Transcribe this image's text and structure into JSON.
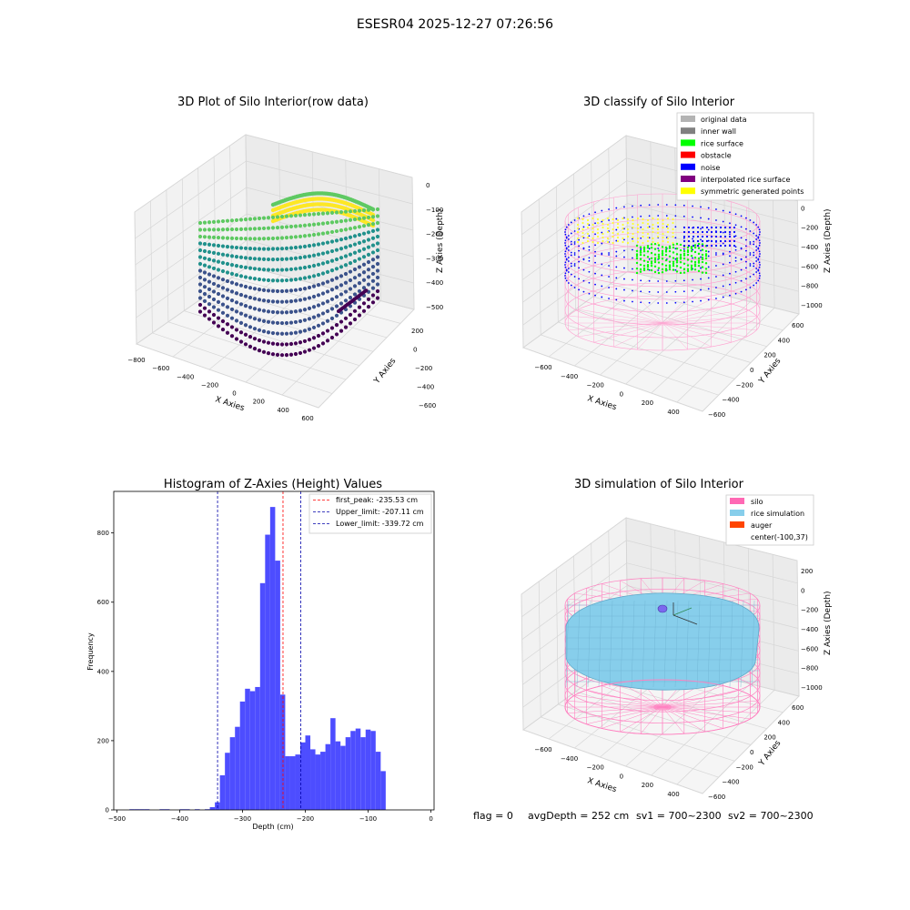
{
  "figure": {
    "suptitle": "ESESR04 2025-12-27 07:26:56",
    "footer": {
      "flag": "flag = 0",
      "avg": "avgDepth = 252 cm",
      "sv1": "sv1 = 700~2300",
      "sv2": "sv2 = 700~2300"
    }
  },
  "chart_data": [
    {
      "type": "scatter",
      "projection": "3d",
      "title": "3D Plot of Silo Interior(row data)",
      "xlabel": "X Axies",
      "ylabel": "Y Axies",
      "zlabel": "Z Axies (Depth)",
      "x_ticks": [
        "−800",
        "−600",
        "−400",
        "−200",
        "0",
        "200",
        "400",
        "600"
      ],
      "y_ticks": [
        "−600",
        "−400",
        "−200",
        "0",
        "200"
      ],
      "z_ticks": [
        "0",
        "−100",
        "−200",
        "−300",
        "−400",
        "−500"
      ],
      "colormap": "viridis",
      "colormap_colors": [
        "#440154",
        "#3b528b",
        "#21918c",
        "#5ec962",
        "#fde725"
      ]
    },
    {
      "type": "scatter",
      "projection": "3d",
      "title": "3D classify of Silo Interior",
      "xlabel": "X Axies",
      "ylabel": "Y Axies",
      "zlabel": "Z Axies (Depth)",
      "x_ticks": [
        "−600",
        "−400",
        "−200",
        "0",
        "200",
        "400"
      ],
      "y_ticks": [
        "−600",
        "−400",
        "−200",
        "0",
        "200",
        "400",
        "600"
      ],
      "z_ticks": [
        "200",
        "0",
        "−200",
        "−400",
        "−600",
        "−800",
        "−1000"
      ],
      "legend_position": "top-right",
      "legend": [
        {
          "label": "original data",
          "color": "#b3b3b3"
        },
        {
          "label": "inner wall",
          "color": "#808080"
        },
        {
          "label": "rice surface",
          "color": "#00ff00"
        },
        {
          "label": "obstacle",
          "color": "#ff0000"
        },
        {
          "label": "noise",
          "color": "#0000ff"
        },
        {
          "label": "interpolated rice surface",
          "color": "#800080"
        },
        {
          "label": "symmetric generated points",
          "color": "#ffff00"
        }
      ]
    },
    {
      "type": "bar",
      "title": "Histogram of Z-Axies (Height) Values",
      "xlabel": "Depth (cm)",
      "ylabel": "Frequency",
      "xlim": [
        -505,
        5
      ],
      "ylim": [
        0,
        920
      ],
      "x_ticks": [
        -500,
        -400,
        -300,
        -200,
        -100,
        0
      ],
      "y_ticks": [
        0,
        200,
        400,
        600,
        800
      ],
      "bar_color": "#4d4dff",
      "bin_width": 8,
      "bins": [
        {
          "x": -480,
          "v": 2
        },
        {
          "x": -472,
          "v": 2
        },
        {
          "x": -464,
          "v": 2
        },
        {
          "x": -456,
          "v": 2
        },
        {
          "x": -432,
          "v": 2
        },
        {
          "x": -424,
          "v": 2
        },
        {
          "x": -400,
          "v": 2
        },
        {
          "x": -392,
          "v": 2
        },
        {
          "x": -376,
          "v": 2
        },
        {
          "x": -360,
          "v": 2
        },
        {
          "x": -352,
          "v": 8
        },
        {
          "x": -344,
          "v": 22
        },
        {
          "x": -336,
          "v": 100
        },
        {
          "x": -328,
          "v": 165
        },
        {
          "x": -320,
          "v": 210
        },
        {
          "x": -312,
          "v": 240
        },
        {
          "x": -304,
          "v": 313
        },
        {
          "x": -296,
          "v": 350
        },
        {
          "x": -288,
          "v": 343
        },
        {
          "x": -280,
          "v": 355
        },
        {
          "x": -272,
          "v": 655
        },
        {
          "x": -264,
          "v": 795
        },
        {
          "x": -256,
          "v": 875
        },
        {
          "x": -248,
          "v": 720
        },
        {
          "x": -240,
          "v": 333
        },
        {
          "x": -232,
          "v": 155
        },
        {
          "x": -224,
          "v": 155
        },
        {
          "x": -216,
          "v": 160
        },
        {
          "x": -208,
          "v": 195
        },
        {
          "x": -200,
          "v": 215
        },
        {
          "x": -192,
          "v": 175
        },
        {
          "x": -184,
          "v": 160
        },
        {
          "x": -176,
          "v": 168
        },
        {
          "x": -168,
          "v": 190
        },
        {
          "x": -160,
          "v": 265
        },
        {
          "x": -152,
          "v": 198
        },
        {
          "x": -144,
          "v": 185
        },
        {
          "x": -136,
          "v": 210
        },
        {
          "x": -128,
          "v": 228
        },
        {
          "x": -120,
          "v": 235
        },
        {
          "x": -112,
          "v": 210
        },
        {
          "x": -104,
          "v": 232
        },
        {
          "x": -96,
          "v": 228
        },
        {
          "x": -88,
          "v": 168
        },
        {
          "x": -80,
          "v": 112
        }
      ],
      "lines": [
        {
          "label": "first_peak: -235.53 cm",
          "x": -235.53,
          "color": "#ff0000"
        },
        {
          "label": "Upper_limit: -207.11 cm",
          "x": -207.11,
          "color": "#0000aa"
        },
        {
          "label": "Lower_limit: -339.72 cm",
          "x": -339.72,
          "color": "#0000aa"
        }
      ],
      "legend_position": "top-right"
    },
    {
      "type": "surface",
      "projection": "3d",
      "title": "3D simulation of Silo Interior",
      "xlabel": "X Axies",
      "ylabel": "Y Axies",
      "zlabel": "Z Axies (Depth)",
      "x_ticks": [
        "−600",
        "−400",
        "−200",
        "0",
        "200",
        "400"
      ],
      "y_ticks": [
        "−600",
        "−400",
        "−200",
        "0",
        "200",
        "400",
        "600"
      ],
      "z_ticks": [
        "200",
        "0",
        "−200",
        "−400",
        "−600",
        "−800",
        "−1000"
      ],
      "legend_position": "top-right",
      "legend": [
        {
          "label": "silo",
          "color": "#ff69b4"
        },
        {
          "label": "rice simulation",
          "color": "#87ceeb"
        },
        {
          "label": "auger",
          "color": "#ff4500"
        },
        {
          "label": "center(-100,37)",
          "color": "#ffffff"
        }
      ]
    }
  ]
}
